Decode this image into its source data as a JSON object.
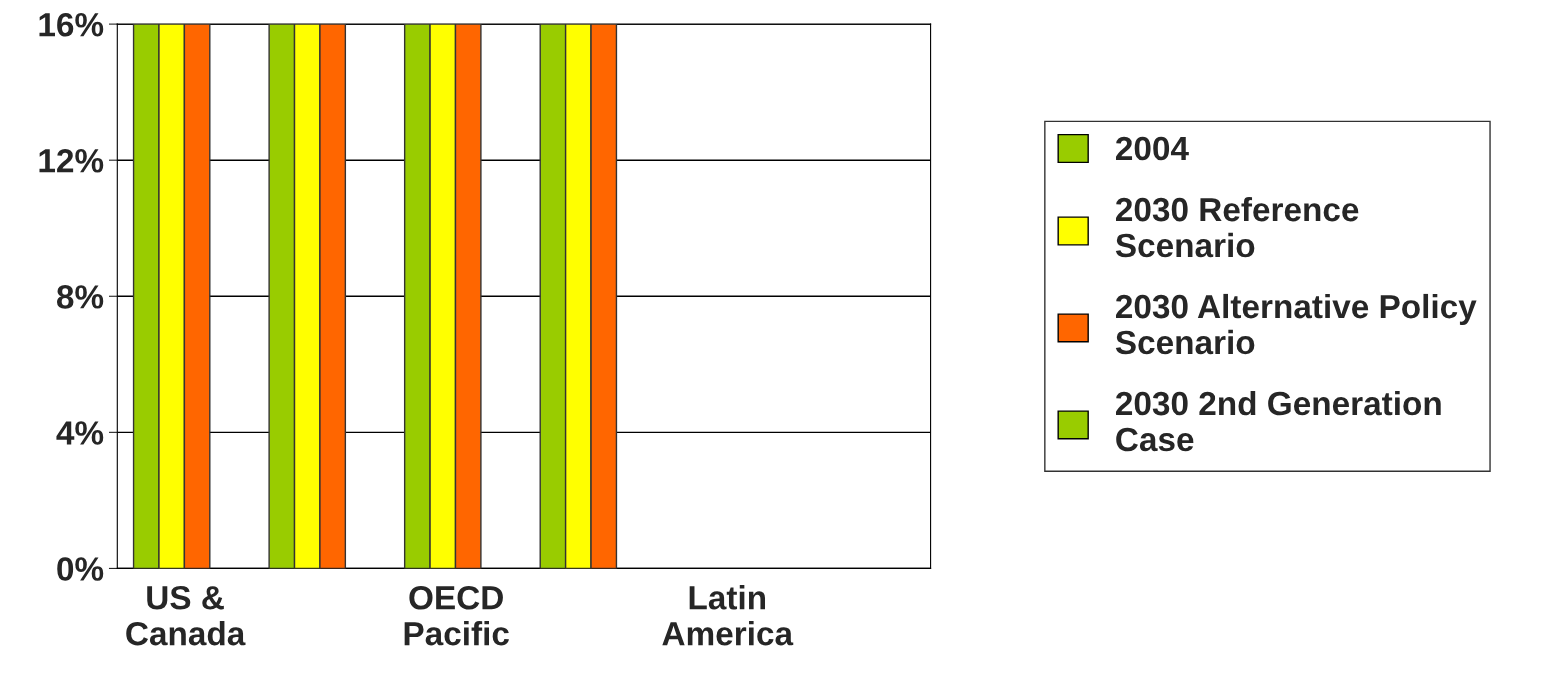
{
  "chart_data": {
    "type": "bar",
    "categories": [
      "US &\nCanada",
      null,
      "OECD\nPacific",
      null,
      "Latin\nAmerica",
      null
    ],
    "series": [
      {
        "name": "2004",
        "color": "#99cc00",
        "values": [
          16,
          16,
          16,
          16,
          0,
          0
        ]
      },
      {
        "name": "2030 Reference\nScenario",
        "color": "#ffff00",
        "values": [
          16,
          16,
          16,
          16,
          0,
          0
        ]
      },
      {
        "name": "2030 Alternative Policy\nScenario",
        "color": "#ff6600",
        "values": [
          16,
          16,
          16,
          16,
          0,
          0
        ]
      },
      {
        "name": "2030 2nd Generation\nCase",
        "color": "#99cc00",
        "values": [
          0,
          0,
          0,
          0,
          0,
          0
        ]
      }
    ],
    "ylim": [
      0,
      16
    ],
    "yticks": [
      {
        "value": 0,
        "label": "0%"
      },
      {
        "value": 4,
        "label": "4%"
      },
      {
        "value": 8,
        "label": "8%"
      },
      {
        "value": 12,
        "label": "12%"
      },
      {
        "value": 16,
        "label": "16%"
      }
    ],
    "grid": "y",
    "legend": "right"
  }
}
